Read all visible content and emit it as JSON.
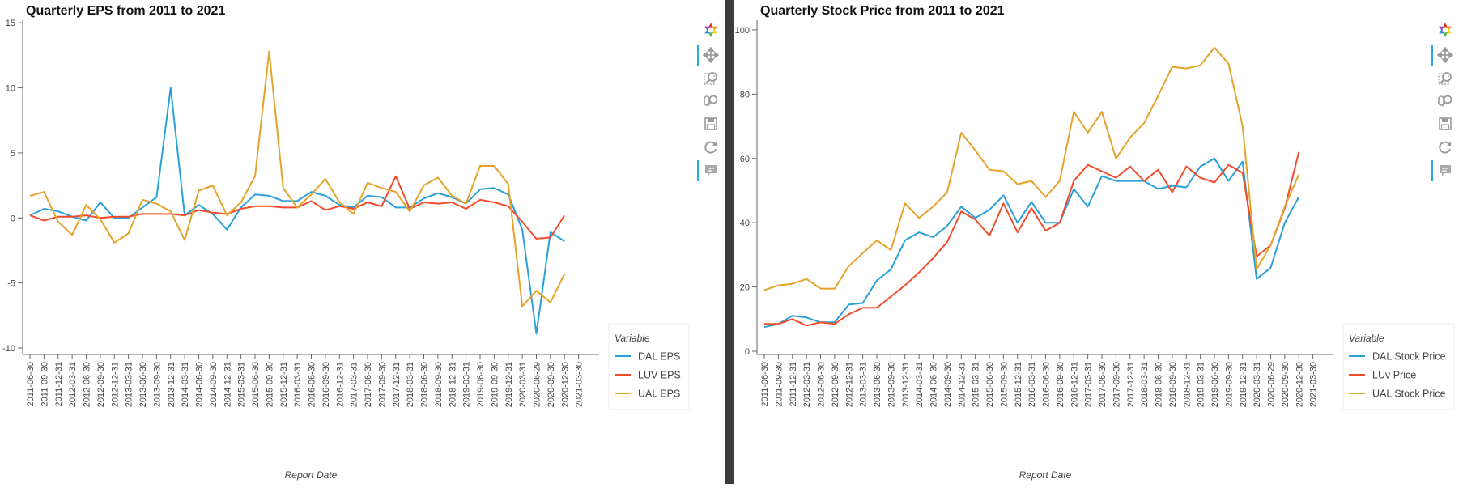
{
  "colors": {
    "dal": "#2aa0d8",
    "luv": "#f24c2c",
    "ual": "#e6a32a",
    "divider": "#3c3c3c",
    "toolbar_active": "#26aae1"
  },
  "toolbar": {
    "tools": [
      {
        "name": "bokeh-logo-icon",
        "active": false
      },
      {
        "name": "pan-icon",
        "active": true
      },
      {
        "name": "box-zoom-icon",
        "active": false
      },
      {
        "name": "wheel-zoom-icon",
        "active": false
      },
      {
        "name": "save-icon",
        "active": false
      },
      {
        "name": "reset-icon",
        "active": false
      },
      {
        "name": "hover-icon",
        "active": true
      }
    ]
  },
  "chart_data": [
    {
      "type": "line",
      "title": "Quarterly EPS from 2011 to 2021",
      "xlabel": "Report Date",
      "ylabel": "",
      "ylim": [
        -10.5,
        15.2
      ],
      "yticks": [
        -10,
        -5,
        0,
        5,
        10,
        15
      ],
      "grid": false,
      "legend": {
        "title": "Variable",
        "placement": "bottom-right"
      },
      "categories": [
        "2011-06-30",
        "2011-09-30",
        "2011-12-31",
        "2012-03-31",
        "2012-06-30",
        "2012-09-30",
        "2012-12-31",
        "2013-03-31",
        "2013-06-30",
        "2013-09-30",
        "2013-12-31",
        "2014-03-31",
        "2014-06-30",
        "2014-09-30",
        "2014-12-31",
        "2015-03-31",
        "2015-06-30",
        "2015-09-30",
        "2015-12-31",
        "2016-03-31",
        "2016-06-30",
        "2016-09-30",
        "2016-12-31",
        "2017-03-31",
        "2017-06-30",
        "2017-09-30",
        "2017-12-31",
        "2018-03-31",
        "2018-06-30",
        "2018-09-30",
        "2018-12-31",
        "2019-03-31",
        "2019-06-30",
        "2019-09-30",
        "2019-12-31",
        "2020-03-31",
        "2020-06-29",
        "2020-09-30",
        "2020-12-30",
        "2021-03-30"
      ],
      "series": [
        {
          "name": "DAL EPS",
          "color": "#2aa0d8",
          "values": [
            0.2,
            0.7,
            0.5,
            0.1,
            -0.2,
            1.2,
            0.0,
            0.0,
            0.8,
            1.6,
            10.0,
            0.2,
            1.0,
            0.3,
            -0.9,
            0.8,
            1.8,
            1.7,
            1.3,
            1.3,
            2.0,
            1.7,
            1.0,
            0.8,
            1.7,
            1.6,
            0.8,
            0.8,
            1.5,
            1.9,
            1.6,
            1.1,
            2.2,
            2.3,
            1.8,
            -0.9,
            -8.9,
            -1.1,
            -1.8,
            null
          ]
        },
        {
          "name": "LUV EPS",
          "color": "#f24c2c",
          "values": [
            0.2,
            -0.2,
            0.1,
            0.1,
            0.2,
            0.0,
            0.1,
            0.1,
            0.3,
            0.3,
            0.3,
            0.2,
            0.6,
            0.4,
            0.3,
            0.7,
            0.9,
            0.9,
            0.8,
            0.8,
            1.3,
            0.6,
            0.9,
            0.7,
            1.2,
            0.9,
            3.2,
            0.7,
            1.2,
            1.1,
            1.2,
            0.7,
            1.4,
            1.2,
            0.9,
            -0.3,
            -1.6,
            -1.5,
            0.2,
            null
          ]
        },
        {
          "name": "UAL EPS",
          "color": "#e6a32a",
          "values": [
            1.7,
            2.0,
            -0.3,
            -1.3,
            1.0,
            -0.1,
            -1.9,
            -1.2,
            1.4,
            1.1,
            0.5,
            -1.7,
            2.1,
            2.5,
            0.2,
            1.2,
            3.2,
            12.8,
            2.3,
            0.8,
            1.8,
            3.0,
            1.2,
            0.3,
            2.7,
            2.3,
            2.0,
            0.5,
            2.5,
            3.1,
            1.7,
            1.1,
            4.0,
            4.0,
            2.6,
            -6.8,
            -5.6,
            -6.5,
            -4.3,
            null
          ]
        }
      ]
    },
    {
      "type": "line",
      "title": "Quarterly Stock Price from 2011 to 2021",
      "xlabel": "Report Date",
      "ylabel": "",
      "ylim": [
        -1,
        103
      ],
      "yticks": [
        0,
        20,
        40,
        60,
        80,
        100
      ],
      "grid": false,
      "legend": {
        "title": "Variable",
        "placement": "bottom-right"
      },
      "categories": [
        "2011-06-30",
        "2011-09-30",
        "2011-12-31",
        "2012-03-31",
        "2012-06-30",
        "2012-09-30",
        "2012-12-31",
        "2013-03-31",
        "2013-06-30",
        "2013-09-30",
        "2013-12-31",
        "2014-03-31",
        "2014-06-30",
        "2014-09-30",
        "2014-12-31",
        "2015-03-31",
        "2015-06-30",
        "2015-09-30",
        "2015-12-31",
        "2016-03-31",
        "2016-06-30",
        "2016-09-30",
        "2016-12-31",
        "2017-03-31",
        "2017-06-30",
        "2017-09-30",
        "2017-12-31",
        "2018-03-31",
        "2018-06-30",
        "2018-09-30",
        "2018-12-31",
        "2019-03-31",
        "2019-06-30",
        "2019-09-30",
        "2019-12-31",
        "2020-03-31",
        "2020-06-29",
        "2020-09-30",
        "2020-12-30",
        "2021-03-30"
      ],
      "series": [
        {
          "name": "DAL Stock Price",
          "color": "#2aa0d8",
          "values": [
            7.5,
            8.5,
            11,
            10.5,
            9,
            9,
            14.5,
            15,
            22,
            25.5,
            34.5,
            37,
            35.5,
            39,
            45,
            41.5,
            44,
            48.5,
            40,
            46.5,
            40,
            40,
            50.5,
            45,
            54.5,
            53,
            53,
            53,
            50.5,
            51.5,
            51,
            57.5,
            60,
            53,
            59,
            22.5,
            26,
            40,
            48,
            null
          ]
        },
        {
          "name": "LUv Price",
          "color": "#f24c2c",
          "values": [
            8.5,
            8.5,
            10,
            8,
            9,
            8.5,
            11.5,
            13.5,
            13.5,
            17,
            20.5,
            24.5,
            29,
            34,
            43.5,
            41,
            36,
            46,
            37,
            44.5,
            37.5,
            40,
            53,
            58,
            56,
            54,
            57.5,
            53,
            56.5,
            49.5,
            57.5,
            54,
            52.5,
            58,
            55.5,
            29.5,
            33,
            44.5,
            62,
            null
          ]
        },
        {
          "name": "UAL Stock Price",
          "color": "#e6a32a",
          "values": [
            19,
            20.5,
            21,
            22.5,
            19.5,
            19.5,
            26.5,
            30.5,
            34.5,
            31.5,
            46,
            41.5,
            45,
            49.5,
            68,
            62.5,
            56.5,
            56,
            52,
            53,
            48,
            53,
            74.5,
            68,
            74.5,
            60,
            66.5,
            71,
            79.5,
            88.5,
            88,
            89,
            94.5,
            89.5,
            70,
            25.5,
            33,
            45,
            55,
            null
          ]
        }
      ]
    }
  ]
}
